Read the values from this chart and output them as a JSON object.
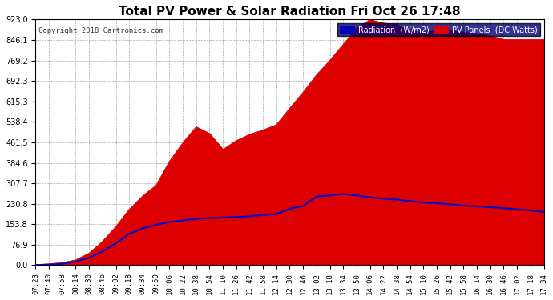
{
  "title": "Total PV Power & Solar Radiation Fri Oct 26 17:48",
  "copyright": "Copyright 2018 Cartronics.com",
  "background_color": "#ffffff",
  "pv_fill_color": "#dd0000",
  "radiation_line_color": "#0000cc",
  "ymax": 923.0,
  "ymin": 0.0,
  "yticks": [
    0.0,
    76.9,
    153.8,
    230.8,
    307.7,
    384.6,
    461.5,
    538.4,
    615.3,
    692.3,
    769.2,
    846.1,
    923.0
  ],
  "xtick_labels": [
    "07:23",
    "07:40",
    "07:58",
    "08:14",
    "08:30",
    "08:46",
    "09:02",
    "09:18",
    "09:34",
    "09:50",
    "10:06",
    "10:22",
    "10:38",
    "10:54",
    "11:10",
    "11:26",
    "11:42",
    "11:58",
    "12:14",
    "12:30",
    "12:46",
    "13:02",
    "13:18",
    "13:34",
    "13:50",
    "14:06",
    "14:22",
    "14:38",
    "14:54",
    "15:10",
    "15:26",
    "15:42",
    "15:58",
    "16:14",
    "16:30",
    "16:46",
    "17:02",
    "17:18",
    "17:34"
  ],
  "pv_values": [
    2,
    5,
    10,
    20,
    45,
    90,
    145,
    210,
    260,
    300,
    390,
    460,
    520,
    495,
    435,
    468,
    492,
    508,
    528,
    590,
    650,
    715,
    770,
    830,
    890,
    923,
    910,
    905,
    880,
    875,
    882,
    880,
    876,
    870,
    862,
    848,
    848,
    848,
    848
  ],
  "radiation_values": [
    1,
    2,
    5,
    14,
    28,
    52,
    82,
    118,
    138,
    152,
    162,
    168,
    174,
    177,
    179,
    181,
    184,
    189,
    192,
    212,
    222,
    258,
    262,
    268,
    262,
    255,
    250,
    246,
    241,
    236,
    233,
    229,
    224,
    221,
    218,
    214,
    210,
    206,
    200
  ]
}
